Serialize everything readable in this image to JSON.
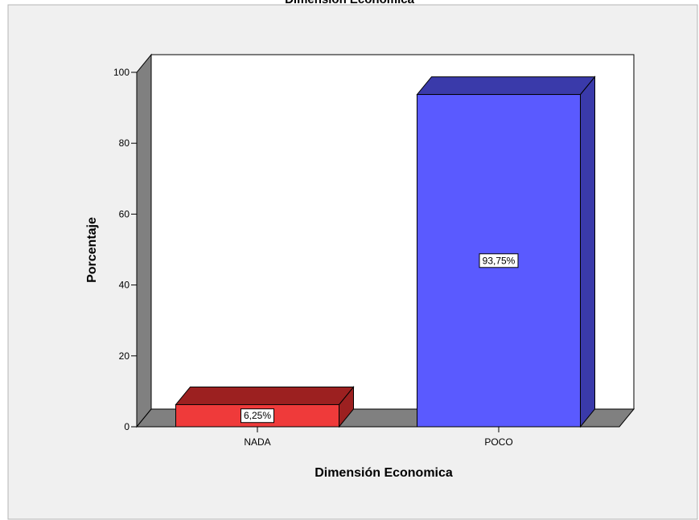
{
  "chart_data": {
    "type": "bar",
    "title": "Dimensión Economica",
    "categories": [
      "NADA",
      "POCO"
    ],
    "values": [
      6.25,
      93.75
    ],
    "data_labels": [
      "6,25%",
      "93,75%"
    ],
    "xlabel": "Dimensión Economica",
    "ylabel": "Porcentaje",
    "ylim": [
      0,
      100
    ],
    "yticks": [
      0,
      20,
      40,
      60,
      80,
      100
    ],
    "ytick_labels": [
      "0",
      "20",
      "40",
      "60",
      "80",
      "100"
    ],
    "grid": false,
    "bar_3d": true,
    "colors": {
      "bar_fronts": [
        "#ef3a3a",
        "#5a5aff"
      ],
      "bar_tops": [
        "#9c2020",
        "#3a3aaa"
      ],
      "bar_sides": [
        "#9c2020",
        "#3a3aaa"
      ],
      "wall": "#808080",
      "floor": "#808080",
      "plot_background": "#ffffff",
      "outer_background": "#f0f0f0"
    }
  }
}
